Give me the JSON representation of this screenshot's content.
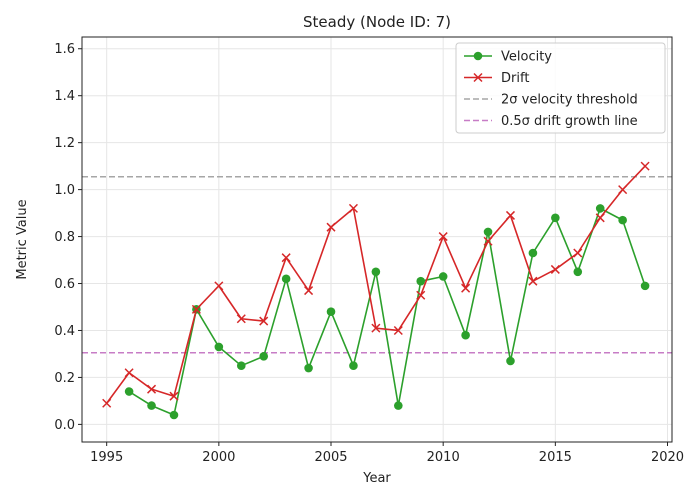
{
  "chart_data": {
    "type": "line",
    "title": "Steady (Node ID: 7)",
    "xlabel": "Year",
    "ylabel": "Metric Value",
    "xlim": [
      1993.9,
      2020.2
    ],
    "ylim": [
      -0.075,
      1.65
    ],
    "xticks": [
      1995,
      2000,
      2005,
      2010,
      2015,
      2020
    ],
    "yticks": [
      0.0,
      0.2,
      0.4,
      0.6,
      0.8,
      1.0,
      1.2,
      1.4,
      1.6
    ],
    "grid": true,
    "legend_position": "top-right",
    "series": [
      {
        "name": "Velocity",
        "color": "#2ca02c",
        "marker": "circle",
        "x": [
          1996,
          1997,
          1998,
          1999,
          2000,
          2001,
          2002,
          2003,
          2004,
          2005,
          2006,
          2007,
          2008,
          2009,
          2010,
          2011,
          2012,
          2013,
          2014,
          2015,
          2016,
          2017,
          2018,
          2019
        ],
        "y": [
          0.14,
          0.08,
          0.04,
          0.49,
          0.33,
          0.25,
          0.29,
          0.62,
          0.24,
          0.48,
          0.25,
          0.65,
          0.08,
          0.61,
          0.63,
          0.38,
          0.82,
          0.27,
          0.73,
          0.88,
          0.65,
          0.92,
          0.87,
          0.59
        ]
      },
      {
        "name": "Drift",
        "color": "#d62728",
        "marker": "x",
        "x": [
          1995,
          1996,
          1997,
          1998,
          1999,
          2000,
          2001,
          2002,
          2003,
          2004,
          2005,
          2006,
          2007,
          2008,
          2009,
          2010,
          2011,
          2012,
          2013,
          2014,
          2015,
          2016,
          2017,
          2018,
          2019
        ],
        "y": [
          0.09,
          0.22,
          0.15,
          0.12,
          0.49,
          0.59,
          0.45,
          0.44,
          0.71,
          0.57,
          0.84,
          0.92,
          0.41,
          0.4,
          0.55,
          0.8,
          0.58,
          0.78,
          0.89,
          0.61,
          0.66,
          0.73,
          0.88,
          1.0,
          1.1
        ]
      }
    ],
    "reference_lines": [
      {
        "name": "2σ velocity threshold",
        "y": 1.055,
        "color": "#a6a6a6",
        "style": "dashed"
      },
      {
        "name": "0.5σ drift growth line",
        "y": 0.305,
        "color": "#c77cc6",
        "style": "dashed"
      }
    ]
  }
}
